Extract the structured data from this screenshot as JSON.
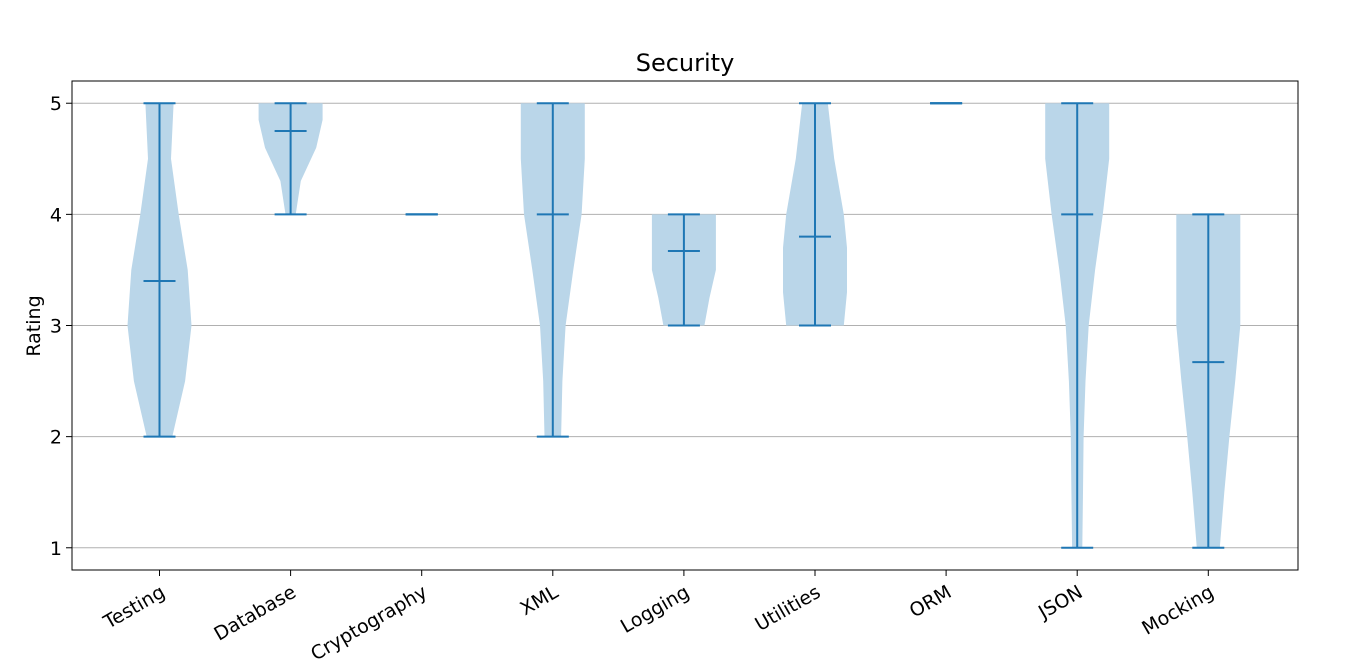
{
  "chart_data": {
    "type": "violin",
    "title": "Security",
    "xlabel": "",
    "ylabel": "Rating",
    "ylim": [
      0.8,
      5.2
    ],
    "yticks": [
      1,
      2,
      3,
      4,
      5
    ],
    "grid": "y",
    "categories": [
      "Testing",
      "Database",
      "Cryptography",
      "XML",
      "Logging",
      "Utilities",
      "ORM",
      "JSON",
      "Mocking"
    ],
    "violins": [
      {
        "min": 2,
        "max": 5,
        "mean": 3.4,
        "density": [
          [
            2.0,
            0.2
          ],
          [
            2.5,
            0.4
          ],
          [
            3.0,
            0.5
          ],
          [
            3.5,
            0.44
          ],
          [
            4.0,
            0.3
          ],
          [
            4.5,
            0.18
          ],
          [
            5.0,
            0.22
          ]
        ]
      },
      {
        "min": 4,
        "max": 5,
        "mean": 4.75,
        "density": [
          [
            4.0,
            0.08
          ],
          [
            4.3,
            0.16
          ],
          [
            4.6,
            0.4
          ],
          [
            4.85,
            0.5
          ],
          [
            5.0,
            0.5
          ]
        ]
      },
      {
        "min": 4,
        "max": 4,
        "mean": 4.0,
        "density": []
      },
      {
        "min": 2,
        "max": 5,
        "mean": 4.0,
        "density": [
          [
            2.0,
            0.13
          ],
          [
            2.5,
            0.15
          ],
          [
            3.0,
            0.2
          ],
          [
            3.5,
            0.32
          ],
          [
            4.0,
            0.45
          ],
          [
            4.5,
            0.5
          ],
          [
            5.0,
            0.5
          ]
        ]
      },
      {
        "min": 3,
        "max": 4,
        "mean": 3.67,
        "density": [
          [
            3.0,
            0.32
          ],
          [
            3.25,
            0.4
          ],
          [
            3.5,
            0.5
          ],
          [
            3.75,
            0.5
          ],
          [
            4.0,
            0.5
          ]
        ]
      },
      {
        "min": 3,
        "max": 5,
        "mean": 3.8,
        "density": [
          [
            3.0,
            0.45
          ],
          [
            3.3,
            0.5
          ],
          [
            3.7,
            0.5
          ],
          [
            4.0,
            0.45
          ],
          [
            4.5,
            0.3
          ],
          [
            5.0,
            0.2
          ]
        ]
      },
      {
        "min": 5,
        "max": 5,
        "mean": 5.0,
        "density": []
      },
      {
        "min": 1,
        "max": 5,
        "mean": 4.0,
        "density": [
          [
            1.0,
            0.08
          ],
          [
            1.5,
            0.09
          ],
          [
            2.0,
            0.1
          ],
          [
            2.5,
            0.13
          ],
          [
            3.0,
            0.18
          ],
          [
            3.5,
            0.28
          ],
          [
            4.0,
            0.4
          ],
          [
            4.5,
            0.5
          ],
          [
            5.0,
            0.5
          ]
        ]
      },
      {
        "min": 1,
        "max": 4,
        "mean": 2.67,
        "density": [
          [
            1.0,
            0.18
          ],
          [
            1.5,
            0.25
          ],
          [
            2.0,
            0.33
          ],
          [
            2.5,
            0.42
          ],
          [
            3.0,
            0.5
          ],
          [
            3.5,
            0.5
          ],
          [
            4.0,
            0.5
          ]
        ]
      }
    ],
    "colors": {
      "fill": "#bad6e9",
      "line": "#1f77b4",
      "grid": "#b0b0b0",
      "axis": "#000000"
    }
  }
}
